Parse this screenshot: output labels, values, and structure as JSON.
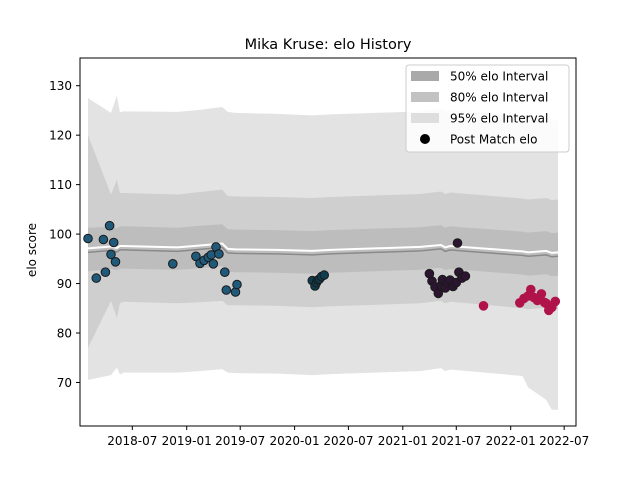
{
  "chart_data": {
    "type": "scatter",
    "title": "Mika Kruse: elo History",
    "xlabel": "",
    "ylabel": "elo score",
    "xlim": [
      "2018-01-05",
      "2022-08-10"
    ],
    "ylim": [
      61.2,
      135.6
    ],
    "x_ticks": [
      "2018-07",
      "2019-01",
      "2019-07",
      "2020-01",
      "2020-07",
      "2021-01",
      "2021-07",
      "2022-01",
      "2022-07"
    ],
    "y_ticks": [
      70,
      80,
      90,
      100,
      110,
      120,
      130
    ],
    "grid": false,
    "legend_position": "top-right",
    "legend": [
      {
        "label": "50% elo Interval",
        "kind": "patch",
        "color": "#a0a0a0"
      },
      {
        "label": "80% elo Interval",
        "kind": "patch",
        "color": "#bdbdbd"
      },
      {
        "label": "95% elo Interval",
        "kind": "patch",
        "color": "#dedede"
      },
      {
        "label": "Post Match elo",
        "kind": "marker",
        "color": "#000000"
      }
    ],
    "intervals": {
      "x": [
        "2018-02-01",
        "2018-04-20",
        "2018-05-10",
        "2018-05-20",
        "2018-06-01",
        "2018-12-01",
        "2019-02-15",
        "2019-05-01",
        "2019-05-20",
        "2019-06-15",
        "2019-11-01",
        "2020-03-01",
        "2020-05-01",
        "2021-03-01",
        "2021-05-10",
        "2021-05-25",
        "2021-06-10",
        "2021-08-10",
        "2022-02-10",
        "2022-03-01",
        "2022-05-01",
        "2022-05-20",
        "2022-06-10"
      ],
      "mean": [
        96.8,
        97.2,
        96.9,
        97.3,
        97.3,
        97.0,
        97.4,
        97.8,
        96.7,
        96.6,
        96.5,
        96.3,
        96.5,
        97.1,
        97.5,
        97.0,
        97.3,
        97.0,
        96.2,
        96.0,
        96.3,
        95.9,
        96.0
      ],
      "p50": [
        [
          92.5,
          101.3
        ],
        [
          93.0,
          101.5
        ],
        [
          92.7,
          101.2
        ],
        [
          93.0,
          101.6
        ],
        [
          93.0,
          101.6
        ],
        [
          92.8,
          101.3
        ],
        [
          93.1,
          101.7
        ],
        [
          93.5,
          102.0
        ],
        [
          92.4,
          101.0
        ],
        [
          92.3,
          100.9
        ],
        [
          92.2,
          100.8
        ],
        [
          92.0,
          100.6
        ],
        [
          92.2,
          100.8
        ],
        [
          92.8,
          101.4
        ],
        [
          93.2,
          101.8
        ],
        [
          92.7,
          101.3
        ],
        [
          93.0,
          101.6
        ],
        [
          92.7,
          101.3
        ],
        [
          91.8,
          100.5
        ],
        [
          91.6,
          100.3
        ],
        [
          91.9,
          100.6
        ],
        [
          91.5,
          100.2
        ],
        [
          91.6,
          100.3
        ]
      ],
      "p80": [
        [
          77.0,
          120.0
        ],
        [
          86.5,
          108.0
        ],
        [
          83.0,
          111.0
        ],
        [
          86.0,
          108.3
        ],
        [
          86.3,
          108.3
        ],
        [
          86.0,
          108.0
        ],
        [
          86.2,
          108.5
        ],
        [
          86.5,
          109.0
        ],
        [
          85.6,
          107.7
        ],
        [
          85.6,
          107.6
        ],
        [
          85.5,
          107.5
        ],
        [
          85.2,
          107.3
        ],
        [
          85.4,
          107.5
        ],
        [
          86.0,
          108.1
        ],
        [
          86.5,
          108.6
        ],
        [
          86.0,
          108.1
        ],
        [
          86.3,
          108.4
        ],
        [
          86.0,
          108.1
        ],
        [
          85.0,
          107.2
        ],
        [
          84.8,
          107.0
        ],
        [
          85.1,
          107.3
        ],
        [
          84.7,
          106.9
        ],
        [
          84.8,
          107.0
        ]
      ],
      "p95": [
        [
          70.5,
          127.5
        ],
        [
          71.5,
          124.5
        ],
        [
          73.0,
          128.0
        ],
        [
          71.6,
          124.6
        ],
        [
          72.0,
          124.8
        ],
        [
          72.0,
          124.7
        ],
        [
          72.3,
          125.1
        ],
        [
          72.7,
          125.7
        ],
        [
          72.0,
          124.7
        ],
        [
          71.9,
          124.5
        ],
        [
          71.8,
          124.3
        ],
        [
          71.5,
          124.0
        ],
        [
          71.7,
          124.2
        ],
        [
          72.3,
          124.8
        ],
        [
          72.9,
          125.4
        ],
        [
          72.3,
          124.8
        ],
        [
          72.6,
          125.1
        ],
        [
          72.3,
          124.8
        ],
        [
          71.3,
          123.9
        ],
        [
          69.0,
          123.5
        ],
        [
          66.5,
          124.0
        ],
        [
          64.5,
          123.0
        ],
        [
          64.5,
          123.0
        ]
      ]
    },
    "series": [
      {
        "color": "#1f5a7a",
        "points": [
          {
            "x": "2018-02-01",
            "y": 99.1
          },
          {
            "x": "2018-03-01",
            "y": 91.1
          },
          {
            "x": "2018-03-25",
            "y": 98.9
          },
          {
            "x": "2018-04-01",
            "y": 92.3
          },
          {
            "x": "2018-04-15",
            "y": 101.7
          },
          {
            "x": "2018-04-20",
            "y": 95.9
          },
          {
            "x": "2018-04-29",
            "y": 98.3
          },
          {
            "x": "2018-05-05",
            "y": 94.4
          },
          {
            "x": "2018-11-15",
            "y": 94.0
          },
          {
            "x": "2019-02-01",
            "y": 95.5
          },
          {
            "x": "2019-02-15",
            "y": 94.1
          },
          {
            "x": "2019-03-01",
            "y": 94.7
          },
          {
            "x": "2019-03-15",
            "y": 95.3
          },
          {
            "x": "2019-03-25",
            "y": 95.8
          },
          {
            "x": "2019-04-01",
            "y": 94.0
          },
          {
            "x": "2019-04-10",
            "y": 97.4
          },
          {
            "x": "2019-04-20",
            "y": 96.0
          },
          {
            "x": "2019-05-10",
            "y": 92.3
          },
          {
            "x": "2019-05-15",
            "y": 88.7
          },
          {
            "x": "2019-06-15",
            "y": 88.3
          },
          {
            "x": "2019-06-20",
            "y": 89.8
          }
        ]
      },
      {
        "color": "#0e3d50",
        "points": [
          {
            "x": "2020-03-01",
            "y": 90.6
          },
          {
            "x": "2020-03-10",
            "y": 89.5
          },
          {
            "x": "2020-03-15",
            "y": 90.2
          },
          {
            "x": "2020-03-20",
            "y": 90.7
          },
          {
            "x": "2020-03-25",
            "y": 90.9
          },
          {
            "x": "2020-04-01",
            "y": 91.4
          },
          {
            "x": "2020-04-10",
            "y": 91.7
          }
        ]
      },
      {
        "color": "#2b1530",
        "points": [
          {
            "x": "2021-04-01",
            "y": 92.0
          },
          {
            "x": "2021-04-10",
            "y": 90.5
          },
          {
            "x": "2021-04-20",
            "y": 89.3
          },
          {
            "x": "2021-05-01",
            "y": 88.0
          },
          {
            "x": "2021-05-10",
            "y": 89.6
          },
          {
            "x": "2021-05-15",
            "y": 90.8
          },
          {
            "x": "2021-05-25",
            "y": 89.1
          },
          {
            "x": "2021-06-01",
            "y": 90.2
          },
          {
            "x": "2021-06-10",
            "y": 90.7
          },
          {
            "x": "2021-06-20",
            "y": 89.4
          },
          {
            "x": "2021-07-01",
            "y": 90.2
          },
          {
            "x": "2021-07-05",
            "y": 98.2
          },
          {
            "x": "2021-07-10",
            "y": 92.3
          },
          {
            "x": "2021-07-20",
            "y": 91.1
          },
          {
            "x": "2021-08-01",
            "y": 91.5
          }
        ]
      },
      {
        "color": "#b0134a",
        "points": [
          {
            "x": "2021-10-01",
            "y": 85.5
          },
          {
            "x": "2022-02-01",
            "y": 86.1
          },
          {
            "x": "2022-02-15",
            "y": 87.0
          },
          {
            "x": "2022-03-01",
            "y": 87.5
          },
          {
            "x": "2022-03-10",
            "y": 88.8
          },
          {
            "x": "2022-03-20",
            "y": 87.2
          },
          {
            "x": "2022-04-01",
            "y": 86.6
          },
          {
            "x": "2022-04-15",
            "y": 87.9
          },
          {
            "x": "2022-04-25",
            "y": 86.2
          },
          {
            "x": "2022-05-01",
            "y": 86.0
          },
          {
            "x": "2022-05-10",
            "y": 84.6
          },
          {
            "x": "2022-05-20",
            "y": 85.2
          },
          {
            "x": "2022-06-01",
            "y": 86.4
          }
        ]
      }
    ]
  }
}
